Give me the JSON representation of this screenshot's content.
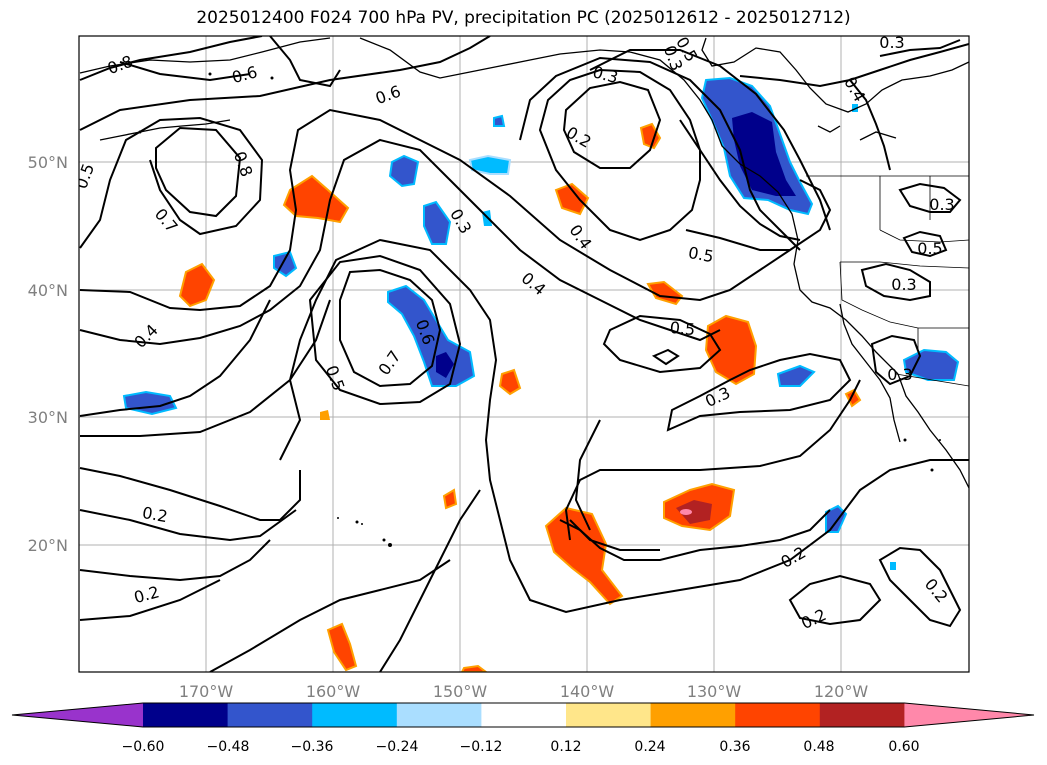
{
  "title": "2025012400 F024 700 hPa PV, precipitation PC (2025012612 - 2025012712)",
  "lat_labels": [
    "50°N",
    "40°N",
    "30°N",
    "20°N"
  ],
  "lon_labels": [
    "170°W",
    "160°W",
    "150°W",
    "140°W",
    "130°W",
    "120°W"
  ],
  "contour_labels": [
    "0.8",
    "0.6",
    "0.6",
    "0.3",
    "0.2",
    "0.3",
    "0.4",
    "0.5",
    "0.8",
    "0.7",
    "0.4",
    "0.3",
    "0.4",
    "0.4",
    "0.5",
    "0.5",
    "0.3",
    "0.5",
    "0.3",
    "0.6",
    "0.7",
    "0.5",
    "0.5",
    "0.3",
    "0.2",
    "0.2",
    "0.2",
    "0.2",
    "0.2",
    "0.3",
    "0.3"
  ],
  "colorbar": {
    "tick_labels": [
      "−0.60",
      "−0.48",
      "−0.36",
      "−0.24",
      "−0.12",
      "0.12",
      "0.24",
      "0.36",
      "0.48",
      "0.60"
    ],
    "colors": [
      "#9933cc",
      "#00008b",
      "#3355cc",
      "#00bbff",
      "#aadeff",
      "#ffffff",
      "#ffe68a",
      "#ffa000",
      "#ff4400",
      "#b22222",
      "#ff88aa"
    ]
  }
}
